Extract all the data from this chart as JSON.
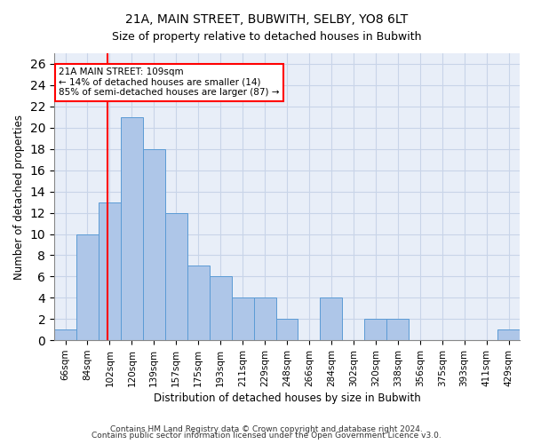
{
  "title1": "21A, MAIN STREET, BUBWITH, SELBY, YO8 6LT",
  "title2": "Size of property relative to detached houses in Bubwith",
  "xlabel": "Distribution of detached houses by size in Bubwith",
  "ylabel": "Number of detached properties",
  "footnote1": "Contains HM Land Registry data © Crown copyright and database right 2024.",
  "footnote2": "Contains public sector information licensed under the Open Government Licence v3.0.",
  "annotation_line1": "21A MAIN STREET: 109sqm",
  "annotation_line2": "← 14% of detached houses are smaller (14)",
  "annotation_line3": "85% of semi-detached houses are larger (87) →",
  "bar_labels": [
    "66sqm",
    "84sqm",
    "102sqm",
    "120sqm",
    "139sqm",
    "157sqm",
    "175sqm",
    "193sqm",
    "211sqm",
    "229sqm",
    "248sqm",
    "266sqm",
    "284sqm",
    "302sqm",
    "320sqm",
    "338sqm",
    "356sqm",
    "375sqm",
    "393sqm",
    "411sqm",
    "429sqm"
  ],
  "bar_heights": [
    1,
    10,
    13,
    21,
    18,
    12,
    7,
    6,
    4,
    4,
    2,
    0,
    4,
    0,
    2,
    2,
    0,
    0,
    0,
    0,
    1
  ],
  "bar_color": "#aec6e8",
  "bar_edge_color": "#5b9bd5",
  "red_line_x": 2.0,
  "ylim_max": 27,
  "yticks": [
    0,
    2,
    4,
    6,
    8,
    10,
    12,
    14,
    16,
    18,
    20,
    22,
    24,
    26
  ],
  "grid_color": "#c8d4e8",
  "bg_color": "#e8eef8"
}
